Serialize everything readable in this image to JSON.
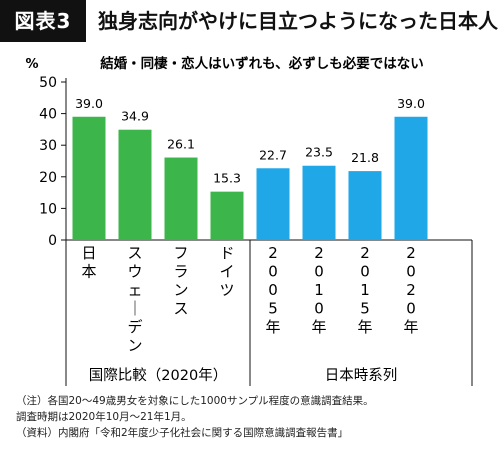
{
  "header": {
    "figure_label": "図表3",
    "title": "独身志向がやけに目立つようになった日本人"
  },
  "chart_data": {
    "type": "bar",
    "title": "結婚・同棲・恋人はいずれも、必ずしも必要ではない",
    "ylabel": "%",
    "ylim": [
      0,
      50
    ],
    "yticks": [
      0,
      10,
      20,
      30,
      40,
      50
    ],
    "grid": false,
    "categories": [
      "日本",
      "スウェーデン",
      "フランス",
      "ドイツ",
      "2005年",
      "2010年",
      "2015年",
      "2020年"
    ],
    "values": [
      39.0,
      34.9,
      26.1,
      15.3,
      22.7,
      23.5,
      21.8,
      39.0
    ],
    "value_labels": [
      "39.0",
      "34.9",
      "26.1",
      "15.3",
      "22.7",
      "23.5",
      "21.8",
      "39.0"
    ],
    "groups": [
      {
        "name": "国際比較（2020年）",
        "color": "#3cb54a",
        "indices": [
          0,
          1,
          2,
          3
        ]
      },
      {
        "name": "日本時系列",
        "color": "#1fa7e8",
        "indices": [
          4,
          5,
          6,
          7
        ]
      }
    ]
  },
  "notes": [
    "（注）各国20〜49歳男女を対象にした1000サンプル程度の意識調査結果。",
    "調査時期は2020年10月〜21年1月。",
    "（資料）内閣府「令和2年度少子化社会に関する国際意識調査報告書」"
  ]
}
